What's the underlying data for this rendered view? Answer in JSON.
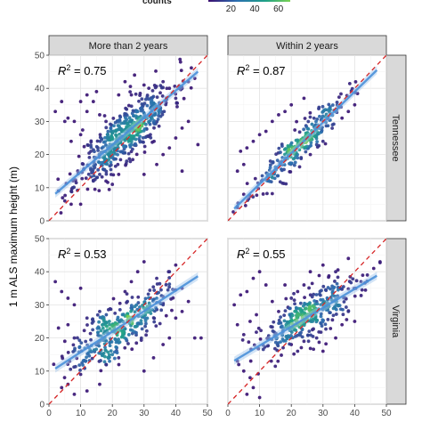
{
  "chart_data": {
    "type": "scatter",
    "ylabel": "1 m ALS maximum height (m)",
    "xlim": [
      0,
      50
    ],
    "ylim": [
      0,
      50
    ],
    "ticks": [
      0,
      10,
      20,
      30,
      40,
      50
    ],
    "column_labels": [
      "More than 2 years",
      "Within 2 years"
    ],
    "row_labels": [
      "Tennessee",
      "Virginia"
    ],
    "legend": {
      "title": "counts",
      "ticks": [
        20,
        40,
        60
      ],
      "range": [
        1,
        70
      ],
      "colors": [
        "#3b0f70",
        "#2a6fb0",
        "#1fa187",
        "#7ad151"
      ]
    },
    "identity_line_color": "#d62728",
    "fit_line_color": "#4a90d9",
    "point_color": "#3b0f70",
    "panels": [
      {
        "row": "Tennessee",
        "col": "More than 2 years",
        "r2_value": "0.75",
        "fit": {
          "intercept": 6.5,
          "slope": 0.82
        },
        "n_points": 520,
        "spread": 4.2,
        "x_center": 24,
        "x_sd": 7.5,
        "seed": 11,
        "outliers": [
          [
            2,
            33
          ],
          [
            4,
            36
          ],
          [
            5,
            30
          ],
          [
            6,
            31
          ],
          [
            7,
            24
          ],
          [
            8,
            30
          ],
          [
            10,
            36
          ],
          [
            12,
            38
          ],
          [
            14,
            36
          ],
          [
            15,
            39
          ],
          [
            3,
            9
          ],
          [
            5,
            6
          ],
          [
            7,
            5
          ],
          [
            30,
            14
          ],
          [
            34,
            17
          ],
          [
            36,
            20
          ],
          [
            38,
            22
          ],
          [
            40,
            25
          ],
          [
            42,
            28
          ],
          [
            44,
            30
          ],
          [
            47,
            23
          ],
          [
            42,
            15
          ],
          [
            10,
            26
          ],
          [
            12,
            33
          ],
          [
            16,
            32
          ],
          [
            18,
            30
          ],
          [
            22,
            38
          ],
          [
            24,
            42
          ],
          [
            26,
            38
          ],
          [
            27,
            44
          ],
          [
            28,
            33
          ],
          [
            30,
            41
          ],
          [
            32,
            26
          ],
          [
            36,
            42
          ],
          [
            38,
            40
          ],
          [
            40,
            37
          ],
          [
            42,
            40
          ],
          [
            44,
            42
          ],
          [
            46,
            43
          ],
          [
            10,
            5
          ],
          [
            14,
            12
          ],
          [
            16,
            14
          ],
          [
            18,
            12
          ],
          [
            20,
            11
          ],
          [
            22,
            14
          ]
        ]
      },
      {
        "row": "Tennessee",
        "col": "Within 2 years",
        "r2_value": "0.87",
        "fit": {
          "intercept": 1.8,
          "slope": 0.93
        },
        "n_points": 260,
        "spread": 2.6,
        "x_center": 22,
        "x_sd": 7.5,
        "seed": 23,
        "outliers": [
          [
            4,
            21
          ],
          [
            6,
            22
          ],
          [
            8,
            24
          ],
          [
            10,
            26
          ],
          [
            12,
            27
          ],
          [
            5,
            17
          ],
          [
            3,
            15
          ],
          [
            14,
            30
          ],
          [
            16,
            32
          ],
          [
            18,
            33
          ],
          [
            20,
            35
          ],
          [
            30,
            24
          ],
          [
            34,
            33
          ],
          [
            36,
            31
          ],
          [
            38,
            33
          ],
          [
            40,
            35
          ],
          [
            24,
            37
          ],
          [
            22,
            19
          ],
          [
            26,
            20
          ],
          [
            28,
            23
          ],
          [
            33,
            29
          ],
          [
            3,
            4
          ],
          [
            5,
            8
          ]
        ]
      },
      {
        "row": "Virginia",
        "col": "More than 2 years",
        "r2_value": "0.53",
        "fit": {
          "intercept": 9.5,
          "slope": 0.62
        },
        "n_points": 330,
        "spread": 4.0,
        "x_center": 22,
        "x_sd": 7.5,
        "seed": 37,
        "outliers": [
          [
            2,
            37
          ],
          [
            4,
            34
          ],
          [
            6,
            32
          ],
          [
            3,
            23
          ],
          [
            5,
            19
          ],
          [
            8,
            30
          ],
          [
            10,
            35
          ],
          [
            12,
            26
          ],
          [
            14,
            25
          ],
          [
            16,
            28
          ],
          [
            30,
            10
          ],
          [
            33,
            14
          ],
          [
            36,
            18
          ],
          [
            38,
            20
          ],
          [
            40,
            26
          ],
          [
            42,
            28
          ],
          [
            44,
            31
          ],
          [
            46,
            20
          ],
          [
            48,
            20
          ],
          [
            38,
            40
          ],
          [
            40,
            42
          ],
          [
            42,
            35
          ],
          [
            34,
            38
          ],
          [
            24,
            34
          ],
          [
            26,
            37
          ],
          [
            28,
            40
          ],
          [
            30,
            43
          ],
          [
            4,
            5
          ],
          [
            6,
            6
          ],
          [
            8,
            3
          ],
          [
            10,
            9
          ],
          [
            12,
            4
          ],
          [
            16,
            6
          ],
          [
            18,
            12
          ],
          [
            20,
            15
          ],
          [
            22,
            14
          ],
          [
            6,
            24
          ],
          [
            8,
            20
          ],
          [
            36,
            30
          ],
          [
            32,
            32
          ]
        ]
      },
      {
        "row": "Virginia",
        "col": "Within 2 years",
        "r2_value": "0.55",
        "fit": {
          "intercept": 12,
          "slope": 0.57
        },
        "n_points": 350,
        "spread": 3.8,
        "x_center": 26,
        "x_sd": 8.5,
        "seed": 53,
        "outliers": [
          [
            2,
            30
          ],
          [
            4,
            33
          ],
          [
            6,
            34
          ],
          [
            8,
            38
          ],
          [
            10,
            40
          ],
          [
            12,
            36
          ],
          [
            14,
            31
          ],
          [
            16,
            28
          ],
          [
            3,
            24
          ],
          [
            5,
            21
          ],
          [
            7,
            25
          ],
          [
            9,
            27
          ],
          [
            3,
            13
          ],
          [
            5,
            10
          ],
          [
            7,
            8
          ],
          [
            20,
            18
          ],
          [
            22,
            16
          ],
          [
            24,
            19
          ],
          [
            28,
            20
          ],
          [
            30,
            16
          ],
          [
            34,
            20
          ],
          [
            36,
            24
          ],
          [
            38,
            28
          ],
          [
            40,
            25
          ],
          [
            42,
            37
          ],
          [
            44,
            39
          ],
          [
            46,
            41
          ],
          [
            48,
            43
          ],
          [
            38,
            44
          ],
          [
            34,
            40
          ],
          [
            30,
            42
          ],
          [
            26,
            40
          ],
          [
            24,
            36
          ],
          [
            18,
            36
          ],
          [
            20,
            32
          ],
          [
            22,
            34
          ],
          [
            6,
            3
          ],
          [
            8,
            5
          ],
          [
            10,
            2
          ]
        ]
      }
    ]
  }
}
